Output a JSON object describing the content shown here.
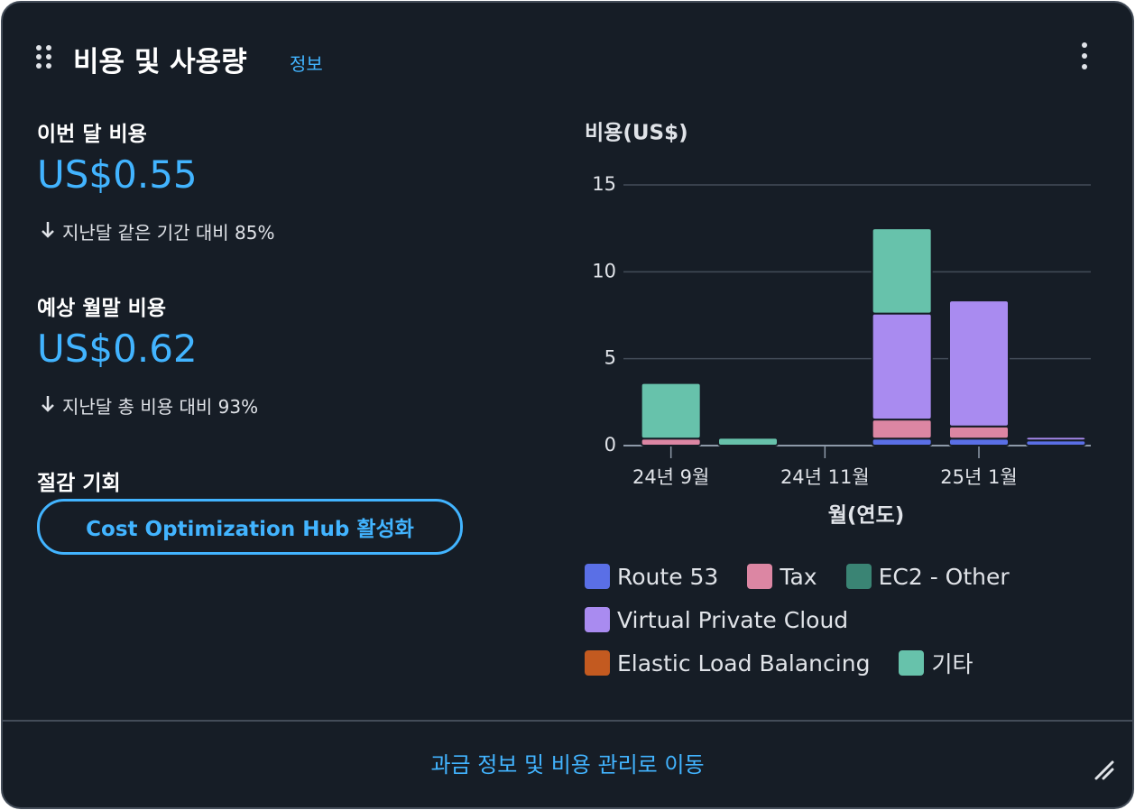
{
  "header": {
    "title": "비용 및 사용량",
    "info": "정보"
  },
  "current": {
    "label": "이번 달 비용",
    "amount": "US$0.55",
    "comparison": "지난달 같은 기간 대비 85%"
  },
  "forecast": {
    "label": "예상 월말 비용",
    "amount": "US$0.62",
    "comparison": "지난달 총 비용 대비 93%"
  },
  "savings": {
    "label": "절감 기회",
    "button": "Cost Optimization Hub 활성화"
  },
  "footer": {
    "link": "과금 정보 및 비용 관리로 이동"
  },
  "chart_data": {
    "type": "bar",
    "stacked": true,
    "y_label": "비용(US$)",
    "x_label": "월(연도)",
    "categories": [
      "24년 9월",
      null,
      "24년 11월",
      null,
      "25년 1월",
      null
    ],
    "ylim": [
      0,
      15
    ],
    "yticks": [
      0,
      5,
      10,
      15
    ],
    "grid": true,
    "series": [
      {
        "name": "Route 53",
        "color": "#5a6fe6",
        "values": [
          0,
          0,
          0,
          0.4,
          0.4,
          0.3
        ]
      },
      {
        "name": "Tax",
        "color": "#dc86a3",
        "values": [
          0.4,
          0,
          0,
          1.1,
          0.7,
          0
        ]
      },
      {
        "name": "EC2 - Other",
        "color": "#3a8474",
        "values": [
          0,
          0,
          0,
          0,
          0,
          0
        ]
      },
      {
        "name": "Virtual Private Cloud",
        "color": "#a98bf0",
        "values": [
          0,
          0,
          0,
          6.1,
          7.25,
          0.2
        ]
      },
      {
        "name": "Elastic Load Balancing",
        "color": "#c35a20",
        "values": [
          0,
          0,
          0,
          0,
          0,
          0
        ]
      },
      {
        "name": "기타",
        "color": "#67c2ab",
        "values": [
          3.2,
          0.45,
          0,
          4.9,
          0,
          0
        ]
      }
    ]
  }
}
